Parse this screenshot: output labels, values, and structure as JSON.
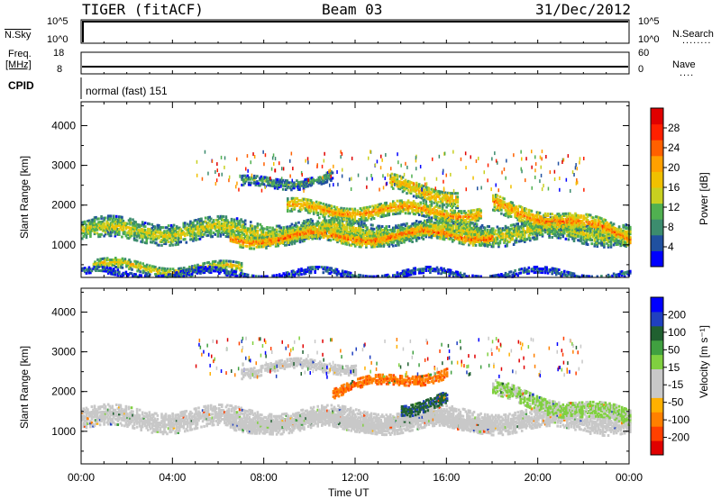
{
  "header": {
    "radar": "TIGER (fitACF)",
    "beam": "Beam 03",
    "date": "31/Dec/2012"
  },
  "panels": {
    "nsky": {
      "left_label": "N.Sky",
      "left_ticks": [
        "10^5",
        "10^0"
      ],
      "right_ticks": [
        "10^5",
        "10^0"
      ],
      "right_label": "N.Search",
      "right_dots": "........"
    },
    "freq": {
      "left_label_1": "Freq.",
      "left_label_2": "[MHz]",
      "left_ticks": [
        "18",
        "8"
      ],
      "right_ticks": [
        "60",
        "0"
      ],
      "right_label": "Nave",
      "right_dots": "...."
    },
    "cpid": {
      "label": "CPID",
      "value": "normal (fast) 151"
    }
  },
  "chart_data": [
    {
      "type": "heatmap",
      "ylabel": "Slant Range [km]",
      "xlabel": "Time UT",
      "x_ticks": [
        "00:00",
        "04:00",
        "08:00",
        "12:00",
        "16:00",
        "20:00",
        "00:00"
      ],
      "x_range_hours": [
        0,
        24
      ],
      "y_ticks": [
        1000,
        2000,
        3000,
        4000
      ],
      "y_range_km": [
        180,
        4600
      ],
      "colorbar": {
        "label": "Power [dB]",
        "ticks": [
          "28",
          "24",
          "20",
          "16",
          "12",
          "8",
          "4"
        ],
        "range": [
          0,
          32
        ],
        "colors": [
          "#0000ff",
          "#2050a0",
          "#3c8c6e",
          "#50b050",
          "#c8d020",
          "#f0c000",
          "#ffa000",
          "#ff6000",
          "#ff2000",
          "#e00000"
        ]
      },
      "echo_bands": [
        {
          "t_start": 0.0,
          "t_end": 24.0,
          "range_center_start": 1350,
          "range_center_end": 1300,
          "width": 500,
          "power": 16
        },
        {
          "t_start": 6.5,
          "t_end": 18.0,
          "range_center_start": 1150,
          "range_center_end": 1250,
          "width": 300,
          "power": 24
        },
        {
          "t_start": 9.0,
          "t_end": 17.5,
          "range_center_start": 1900,
          "range_center_end": 1800,
          "width": 350,
          "power": 22
        },
        {
          "t_start": 13.5,
          "t_end": 16.5,
          "range_center_start": 2500,
          "range_center_end": 2200,
          "width": 400,
          "power": 20
        },
        {
          "t_start": 18.0,
          "t_end": 24.0,
          "range_center_start": 2000,
          "range_center_end": 1200,
          "width": 450,
          "power": 22
        },
        {
          "t_start": 7.0,
          "t_end": 11.0,
          "range_center_start": 2500,
          "range_center_end": 2700,
          "width": 250,
          "power": 10
        },
        {
          "t_start": 0.5,
          "t_end": 7.0,
          "range_center_start": 450,
          "range_center_end": 350,
          "width": 250,
          "power": 18
        },
        {
          "t_start": 0.0,
          "t_end": 24.0,
          "range_center_start": 250,
          "range_center_end": 250,
          "width": 150,
          "power": 6
        }
      ]
    },
    {
      "type": "heatmap",
      "ylabel": "Slant Range [km]",
      "xlabel": "Time UT",
      "x_ticks": [
        "00:00",
        "04:00",
        "08:00",
        "12:00",
        "16:00",
        "20:00",
        "00:00"
      ],
      "x_range_hours": [
        0,
        24
      ],
      "y_ticks": [
        1000,
        2000,
        3000,
        4000
      ],
      "y_range_km": [
        180,
        4600
      ],
      "colorbar": {
        "label": "Velocity [m s⁻¹]",
        "ticks": [
          "200",
          "100",
          "50",
          "15",
          "-15",
          "-50",
          "-100",
          "-200"
        ],
        "colors": [
          "#e00000",
          "#ff4000",
          "#ff8000",
          "#ffb000",
          "#c8c8c8",
          "#c8c8c8",
          "#80d040",
          "#40a040",
          "#206030",
          "#2040c0",
          "#0000ff"
        ]
      },
      "echo_bands": [
        {
          "t_start": 0.0,
          "t_end": 24.0,
          "range_center_start": 1300,
          "range_center_end": 1250,
          "width": 500,
          "velocity": 0
        },
        {
          "t_start": 6.5,
          "t_end": 18.0,
          "range_center_start": 1200,
          "range_center_end": 1250,
          "width": 300,
          "velocity": -20
        },
        {
          "t_start": 7.0,
          "t_end": 12.0,
          "range_center_start": 2550,
          "range_center_end": 2650,
          "width": 250,
          "velocity": 0
        },
        {
          "t_start": 18.0,
          "t_end": 24.0,
          "range_center_start": 2000,
          "range_center_end": 1300,
          "width": 400,
          "velocity": 30
        },
        {
          "t_start": 11.0,
          "t_end": 16.0,
          "range_center_start": 2000,
          "range_center_end": 2500,
          "width": 250,
          "velocity": -150
        },
        {
          "t_start": 14.0,
          "t_end": 16.0,
          "range_center_start": 1600,
          "range_center_end": 1800,
          "width": 300,
          "velocity": 150
        }
      ]
    }
  ]
}
